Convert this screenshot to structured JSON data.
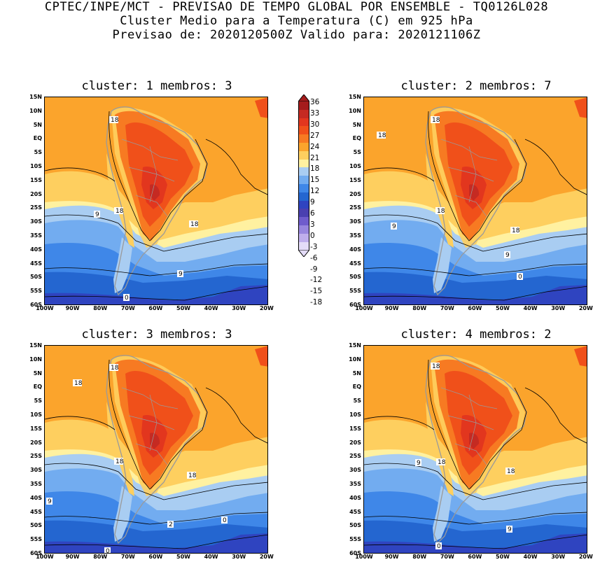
{
  "header": {
    "line1": "CPTEC/INPE/MCT - PREVISAO DE TEMPO GLOBAL POR ENSEMBLE - TQ0126L028",
    "line2": "Cluster Medio para a Temperatura (C) em 925 hPa",
    "line3": "Previsao de: 2020120500Z   Valido para: 2020121106Z"
  },
  "panels": [
    {
      "title": "cluster: 1  membros: 3",
      "labels": [
        "18",
        "18",
        "18",
        "9",
        "9",
        "0"
      ]
    },
    {
      "title": "cluster: 2  membros: 7",
      "labels": [
        "18",
        "18",
        "18",
        "18",
        "9",
        "9",
        "0"
      ]
    },
    {
      "title": "cluster: 3  membros: 3",
      "labels": [
        "18",
        "18",
        "18",
        "18",
        "9",
        "2",
        "0",
        "0"
      ]
    },
    {
      "title": "cluster: 4  membros: 2",
      "labels": [
        "18",
        "18",
        "18",
        "9",
        "9",
        "0"
      ]
    }
  ],
  "lat_ticks": [
    "15N",
    "10N",
    "5N",
    "EQ",
    "5S",
    "10S",
    "15S",
    "20S",
    "25S",
    "30S",
    "35S",
    "40S",
    "45S",
    "50S",
    "55S",
    "60S"
  ],
  "lon_ticks": [
    "100W",
    "90W",
    "80W",
    "70W",
    "60W",
    "50W",
    "40W",
    "30W",
    "20W"
  ],
  "colorbar": {
    "labels": [
      "36",
      "33",
      "30",
      "27",
      "24",
      "21",
      "18",
      "15",
      "12",
      "9",
      "6",
      "3",
      "0",
      "-3",
      "-6",
      "-9",
      "-12",
      "-15",
      "-18"
    ],
    "colors": [
      "#a51c1c",
      "#c52a22",
      "#e2361e",
      "#f0501a",
      "#f77a22",
      "#fba42c",
      "#fecf5f",
      "#fff1a0",
      "#a9cdf2",
      "#72acf0",
      "#3f87e8",
      "#2466d0",
      "#2f44c0",
      "#4a40b0",
      "#6f5ccc",
      "#9886de",
      "#bfaeec",
      "#e4dcf8"
    ]
  }
}
